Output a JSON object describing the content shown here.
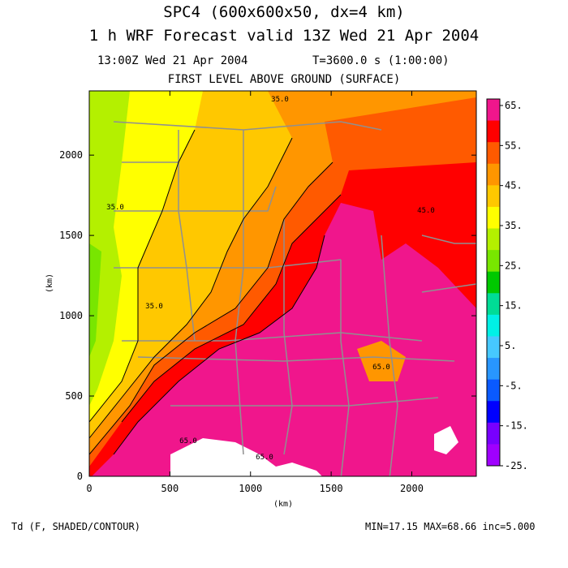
{
  "titles": {
    "line1": "SPC4 (600x600x50, dx=4 km)",
    "line2": "1 h WRF Forecast valid 13Z Wed 21 Apr 2004",
    "line3a": "13:00Z Wed 21 Apr 2004",
    "line3b": "T=3600.0 s (1:00:00)",
    "line4": "FIRST LEVEL ABOVE GROUND (SURFACE)"
  },
  "footer": {
    "field": "Td (F, SHADED/CONTOUR)",
    "stats": "MIN=17.15 MAX=68.66 inc=5.000"
  },
  "chart_data": {
    "type": "heatmap",
    "xlabel": "(km)",
    "ylabel": "(km)",
    "xlim": [
      0,
      2400
    ],
    "ylim": [
      0,
      2400
    ],
    "x_ticks": [
      "0",
      "500",
      "1000",
      "1500",
      "2000"
    ],
    "y_ticks": [
      "0",
      "500",
      "1000",
      "1500",
      "2000"
    ],
    "contour_labels": [
      "35.0",
      "35.0",
      "35.0",
      "45.0",
      "65.0",
      "65.0",
      "65.0"
    ],
    "colorbar": {
      "labels": [
        "65.",
        "55.",
        "45.",
        "35.",
        "25.",
        "15.",
        "5.",
        "-5.",
        "-15.",
        "-25."
      ],
      "colors": [
        "#f0168c",
        "#ff0000",
        "#ff5a00",
        "#ff9600",
        "#ffc800",
        "#ffff00",
        "#b4f000",
        "#78e600",
        "#00c800",
        "#00dc96",
        "#00f0e6",
        "#46c8ff",
        "#2896ff",
        "#0a5aff",
        "#0000ff",
        "#7800ff",
        "#a000ff"
      ]
    }
  }
}
